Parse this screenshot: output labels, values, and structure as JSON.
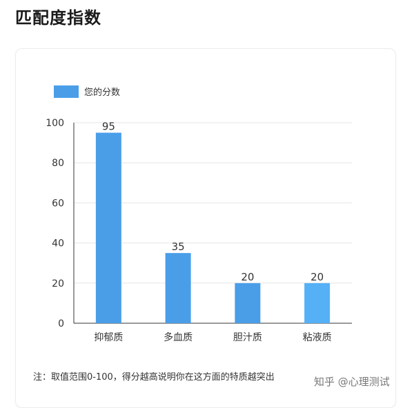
{
  "header": {
    "title": "匹配度指数"
  },
  "chart_data": {
    "type": "bar",
    "categories": [
      "抑郁质",
      "多血质",
      "胆汁质",
      "粘液质"
    ],
    "series": [
      {
        "name": "您的分数",
        "values": [
          95,
          35,
          20,
          20
        ],
        "colors": [
          "#4a9ee8",
          "#4a9ee8",
          "#4a9ee8",
          "#55b0f5"
        ]
      }
    ],
    "ylim": [
      0,
      100
    ],
    "yticks": [
      0,
      20,
      40,
      60,
      80,
      100
    ],
    "grid": true,
    "legend": "top-left"
  },
  "note": "注：取值范围0-100，得分越高说明你在这方面的特质越突出",
  "watermark": "知乎 @心理测试"
}
